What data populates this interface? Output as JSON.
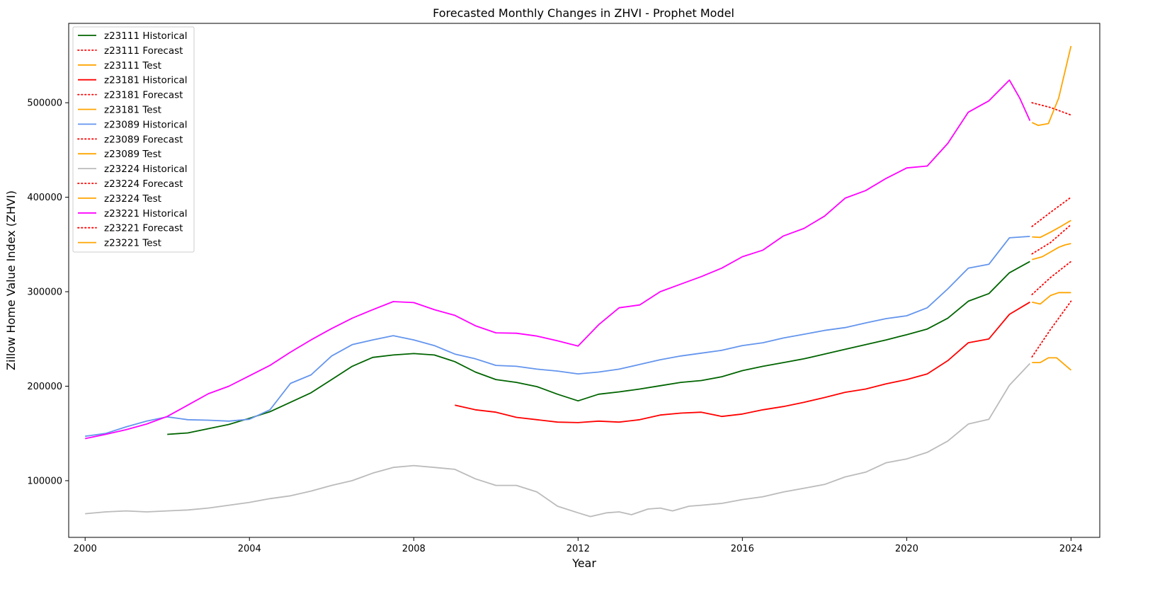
{
  "chart_data": {
    "type": "line",
    "title": "Forecasted Monthly Changes in ZHVI - Prophet Model",
    "xlabel": "Year",
    "ylabel": "Zillow Home Value Index (ZHVI)",
    "xlim": [
      1999.6,
      2024.7
    ],
    "ylim": [
      40000,
      584000
    ],
    "xticks": [
      2000,
      2004,
      2008,
      2012,
      2016,
      2020,
      2024
    ],
    "xtick_labels": [
      "2000",
      "2004",
      "2008",
      "2012",
      "2016",
      "2020",
      "2024"
    ],
    "yticks": [
      100000,
      200000,
      300000,
      400000,
      500000
    ],
    "ytick_labels": [
      "100000",
      "200000",
      "300000",
      "400000",
      "500000"
    ],
    "grid": false,
    "legend_position": "upper-left",
    "colors": {
      "z23111_hist": "#006400",
      "z23181_hist": "#ff0000",
      "z23089_hist": "#6495ed",
      "z23224_hist": "#bbbbbb",
      "z23221_hist": "#ff00ff",
      "forecast": "#ff0000",
      "test": "#ffa500"
    },
    "series": [
      {
        "name": "z23111 Historical",
        "style": "solid",
        "color": "#006400",
        "points": [
          [
            2002.0,
            149000
          ],
          [
            2002.5,
            150500
          ],
          [
            2003.0,
            155000
          ],
          [
            2003.5,
            159500
          ],
          [
            2004.0,
            166000
          ],
          [
            2004.5,
            173000
          ],
          [
            2005.0,
            183000
          ],
          [
            2005.5,
            193000
          ],
          [
            2006.0,
            207000
          ],
          [
            2006.5,
            221000
          ],
          [
            2007.0,
            230500
          ],
          [
            2007.5,
            233000
          ],
          [
            2008.0,
            234500
          ],
          [
            2008.5,
            233000
          ],
          [
            2009.0,
            226000
          ],
          [
            2009.5,
            215000
          ],
          [
            2010.0,
            207000
          ],
          [
            2010.5,
            204000
          ],
          [
            2011.0,
            199500
          ],
          [
            2011.5,
            191500
          ],
          [
            2012.0,
            184500
          ],
          [
            2012.5,
            191500
          ],
          [
            2013.0,
            194000
          ],
          [
            2013.5,
            197000
          ],
          [
            2014.0,
            200500
          ],
          [
            2014.5,
            204000
          ],
          [
            2015.0,
            206000
          ],
          [
            2015.5,
            210000
          ],
          [
            2016.0,
            216500
          ],
          [
            2016.5,
            221000
          ],
          [
            2017.0,
            225000
          ],
          [
            2017.5,
            229000
          ],
          [
            2018.0,
            234000
          ],
          [
            2018.5,
            239000
          ],
          [
            2019.0,
            244000
          ],
          [
            2019.5,
            249000
          ],
          [
            2020.0,
            254500
          ],
          [
            2020.5,
            260500
          ],
          [
            2021.0,
            272000
          ],
          [
            2021.5,
            290000
          ],
          [
            2022.0,
            298000
          ],
          [
            2022.5,
            320000
          ],
          [
            2023.0,
            332000
          ]
        ]
      },
      {
        "name": "z23111 Forecast",
        "style": "dotted",
        "color": "#ff0000",
        "points": [
          [
            2023.05,
            340000
          ],
          [
            2023.5,
            352000
          ],
          [
            2024.0,
            371000
          ]
        ]
      },
      {
        "name": "z23111 Test",
        "style": "solid",
        "color": "#ffa500",
        "points": [
          [
            2023.05,
            334000
          ],
          [
            2023.3,
            337000
          ],
          [
            2023.5,
            342000
          ],
          [
            2023.7,
            347000
          ],
          [
            2023.85,
            349500
          ],
          [
            2024.0,
            351000
          ]
        ]
      },
      {
        "name": "z23181 Historical",
        "style": "solid",
        "color": "#ff0000",
        "points": [
          [
            2009.0,
            180000
          ],
          [
            2009.5,
            175000
          ],
          [
            2010.0,
            172500
          ],
          [
            2010.5,
            167000
          ],
          [
            2011.0,
            164500
          ],
          [
            2011.5,
            162000
          ],
          [
            2012.0,
            161500
          ],
          [
            2012.5,
            163000
          ],
          [
            2013.0,
            162000
          ],
          [
            2013.5,
            164500
          ],
          [
            2014.0,
            169500
          ],
          [
            2014.5,
            171500
          ],
          [
            2015.0,
            172500
          ],
          [
            2015.5,
            168000
          ],
          [
            2016.0,
            170500
          ],
          [
            2016.5,
            175000
          ],
          [
            2017.0,
            178500
          ],
          [
            2017.5,
            183000
          ],
          [
            2018.0,
            188000
          ],
          [
            2018.5,
            193500
          ],
          [
            2019.0,
            197000
          ],
          [
            2019.5,
            202500
          ],
          [
            2020.0,
            207000
          ],
          [
            2020.5,
            213000
          ],
          [
            2021.0,
            227000
          ],
          [
            2021.5,
            246000
          ],
          [
            2022.0,
            250000
          ],
          [
            2022.5,
            276000
          ],
          [
            2023.0,
            289000
          ]
        ]
      },
      {
        "name": "z23181 Forecast",
        "style": "dotted",
        "color": "#ff0000",
        "points": [
          [
            2023.05,
            297000
          ],
          [
            2023.5,
            315000
          ],
          [
            2024.0,
            332000
          ]
        ]
      },
      {
        "name": "z23181 Test",
        "style": "solid",
        "color": "#ffa500",
        "points": [
          [
            2023.05,
            289000
          ],
          [
            2023.25,
            287000
          ],
          [
            2023.5,
            296000
          ],
          [
            2023.7,
            299000
          ],
          [
            2024.0,
            299000
          ]
        ]
      },
      {
        "name": "z23089 Historical",
        "style": "solid",
        "color": "#6495ed",
        "points": [
          [
            2000.0,
            147000
          ],
          [
            2000.5,
            150000
          ],
          [
            2001.0,
            157000
          ],
          [
            2001.5,
            163000
          ],
          [
            2002.0,
            167500
          ],
          [
            2002.5,
            164500
          ],
          [
            2003.0,
            164000
          ],
          [
            2003.5,
            163000
          ],
          [
            2004.0,
            165000
          ],
          [
            2004.5,
            175000
          ],
          [
            2005.0,
            203000
          ],
          [
            2005.5,
            212000
          ],
          [
            2006.0,
            232000
          ],
          [
            2006.5,
            244000
          ],
          [
            2007.0,
            249000
          ],
          [
            2007.5,
            253500
          ],
          [
            2008.0,
            249000
          ],
          [
            2008.5,
            243000
          ],
          [
            2009.0,
            234000
          ],
          [
            2009.5,
            229000
          ],
          [
            2010.0,
            222000
          ],
          [
            2010.5,
            221000
          ],
          [
            2011.0,
            218000
          ],
          [
            2011.5,
            216000
          ],
          [
            2012.0,
            213000
          ],
          [
            2012.5,
            215000
          ],
          [
            2013.0,
            218000
          ],
          [
            2013.5,
            223000
          ],
          [
            2014.0,
            228000
          ],
          [
            2014.5,
            232000
          ],
          [
            2015.0,
            235000
          ],
          [
            2015.5,
            238000
          ],
          [
            2016.0,
            243000
          ],
          [
            2016.5,
            246000
          ],
          [
            2017.0,
            251000
          ],
          [
            2017.5,
            255000
          ],
          [
            2018.0,
            259000
          ],
          [
            2018.5,
            262000
          ],
          [
            2019.0,
            267000
          ],
          [
            2019.5,
            271500
          ],
          [
            2020.0,
            274500
          ],
          [
            2020.5,
            283000
          ],
          [
            2021.0,
            303000
          ],
          [
            2021.5,
            325000
          ],
          [
            2022.0,
            329000
          ],
          [
            2022.5,
            357000
          ],
          [
            2023.0,
            358500
          ]
        ]
      },
      {
        "name": "z23089 Forecast",
        "style": "dotted",
        "color": "#ff0000",
        "points": [
          [
            2023.05,
            369000
          ],
          [
            2023.5,
            384000
          ],
          [
            2024.0,
            400000
          ]
        ]
      },
      {
        "name": "z23089 Test",
        "style": "solid",
        "color": "#ffa500",
        "points": [
          [
            2023.05,
            358000
          ],
          [
            2023.25,
            357500
          ],
          [
            2023.5,
            363000
          ],
          [
            2023.75,
            369000
          ],
          [
            2024.0,
            375500
          ]
        ]
      },
      {
        "name": "z23224 Historical",
        "style": "solid",
        "color": "#bbbbbb",
        "points": [
          [
            2000.0,
            65000
          ],
          [
            2000.5,
            67000
          ],
          [
            2001.0,
            68000
          ],
          [
            2001.5,
            67000
          ],
          [
            2002.0,
            68000
          ],
          [
            2002.5,
            69000
          ],
          [
            2003.0,
            71000
          ],
          [
            2003.5,
            74000
          ],
          [
            2004.0,
            77000
          ],
          [
            2004.5,
            81000
          ],
          [
            2005.0,
            84000
          ],
          [
            2005.5,
            89000
          ],
          [
            2006.0,
            95000
          ],
          [
            2006.5,
            100000
          ],
          [
            2007.0,
            108000
          ],
          [
            2007.5,
            114000
          ],
          [
            2008.0,
            116000
          ],
          [
            2008.5,
            114000
          ],
          [
            2009.0,
            112000
          ],
          [
            2009.5,
            102000
          ],
          [
            2010.0,
            95000
          ],
          [
            2010.5,
            95000
          ],
          [
            2011.0,
            88000
          ],
          [
            2011.5,
            73000
          ],
          [
            2012.0,
            66000
          ],
          [
            2012.3,
            62000
          ],
          [
            2012.7,
            66000
          ],
          [
            2013.0,
            67000
          ],
          [
            2013.3,
            64000
          ],
          [
            2013.7,
            70000
          ],
          [
            2014.0,
            71000
          ],
          [
            2014.3,
            68000
          ],
          [
            2014.7,
            73000
          ],
          [
            2015.0,
            74000
          ],
          [
            2015.5,
            76000
          ],
          [
            2016.0,
            80000
          ],
          [
            2016.5,
            83000
          ],
          [
            2017.0,
            88000
          ],
          [
            2017.5,
            92000
          ],
          [
            2018.0,
            96000
          ],
          [
            2018.5,
            104000
          ],
          [
            2019.0,
            109000
          ],
          [
            2019.5,
            119000
          ],
          [
            2020.0,
            123000
          ],
          [
            2020.5,
            130000
          ],
          [
            2021.0,
            142000
          ],
          [
            2021.5,
            160000
          ],
          [
            2022.0,
            165000
          ],
          [
            2022.5,
            201000
          ],
          [
            2023.0,
            224000
          ]
        ]
      },
      {
        "name": "z23224 Forecast",
        "style": "dotted",
        "color": "#ff0000",
        "points": [
          [
            2023.05,
            231000
          ],
          [
            2023.5,
            260000
          ],
          [
            2024.0,
            290000
          ]
        ]
      },
      {
        "name": "z23224 Test",
        "style": "solid",
        "color": "#ffa500",
        "points": [
          [
            2023.05,
            225000
          ],
          [
            2023.25,
            225000
          ],
          [
            2023.45,
            230000
          ],
          [
            2023.65,
            230000
          ],
          [
            2024.0,
            217000
          ]
        ]
      },
      {
        "name": "z23221 Historical",
        "style": "solid",
        "color": "#ff00ff",
        "points": [
          [
            2000.0,
            144500
          ],
          [
            2000.5,
            149000
          ],
          [
            2001.0,
            154000
          ],
          [
            2001.5,
            160000
          ],
          [
            2002.0,
            168000
          ],
          [
            2002.5,
            180000
          ],
          [
            2003.0,
            192000
          ],
          [
            2003.5,
            200000
          ],
          [
            2004.0,
            211000
          ],
          [
            2004.5,
            222000
          ],
          [
            2005.0,
            236000
          ],
          [
            2005.5,
            249000
          ],
          [
            2006.0,
            261000
          ],
          [
            2006.5,
            272000
          ],
          [
            2007.0,
            281000
          ],
          [
            2007.5,
            289500
          ],
          [
            2008.0,
            288500
          ],
          [
            2008.5,
            281000
          ],
          [
            2009.0,
            275000
          ],
          [
            2009.5,
            264000
          ],
          [
            2010.0,
            256500
          ],
          [
            2010.5,
            256000
          ],
          [
            2011.0,
            253000
          ],
          [
            2011.5,
            248000
          ],
          [
            2012.0,
            242500
          ],
          [
            2012.5,
            265000
          ],
          [
            2013.0,
            283000
          ],
          [
            2013.5,
            286000
          ],
          [
            2014.0,
            300000
          ],
          [
            2014.5,
            308000
          ],
          [
            2015.0,
            316000
          ],
          [
            2015.5,
            325000
          ],
          [
            2016.0,
            337000
          ],
          [
            2016.5,
            344000
          ],
          [
            2017.0,
            359000
          ],
          [
            2017.5,
            367000
          ],
          [
            2018.0,
            380000
          ],
          [
            2018.5,
            399000
          ],
          [
            2019.0,
            407000
          ],
          [
            2019.5,
            420000
          ],
          [
            2020.0,
            431000
          ],
          [
            2020.5,
            433000
          ],
          [
            2021.0,
            457000
          ],
          [
            2021.5,
            490000
          ],
          [
            2022.0,
            502000
          ],
          [
            2022.5,
            524000
          ],
          [
            2022.75,
            505000
          ],
          [
            2023.0,
            481000
          ]
        ]
      },
      {
        "name": "z23221 Forecast",
        "style": "dotted",
        "color": "#ff0000",
        "points": [
          [
            2023.05,
            500000
          ],
          [
            2023.5,
            495000
          ],
          [
            2024.0,
            487000
          ]
        ]
      },
      {
        "name": "z23221 Test",
        "style": "solid",
        "color": "#ffa500",
        "points": [
          [
            2023.05,
            479000
          ],
          [
            2023.2,
            476000
          ],
          [
            2023.45,
            478000
          ],
          [
            2023.7,
            505000
          ],
          [
            2024.0,
            560000
          ]
        ]
      }
    ]
  }
}
